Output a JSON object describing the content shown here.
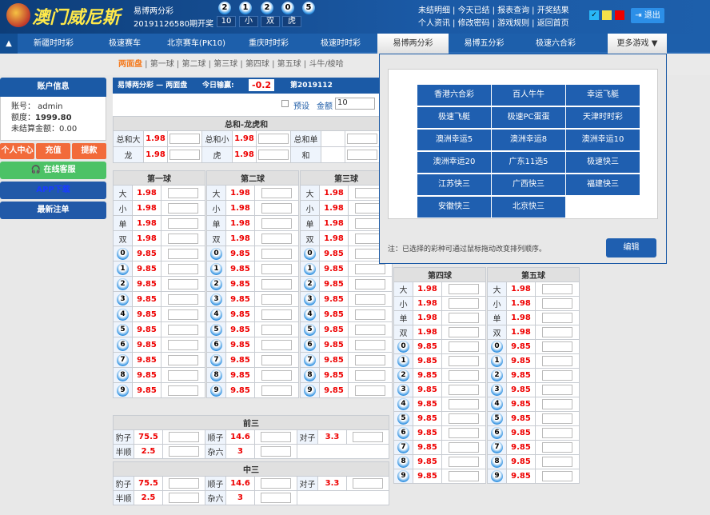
{
  "brand": "澳门威尼斯",
  "lottery": {
    "name": "易博两分彩",
    "issue": "20191126580期开奖",
    "balls": [
      "2",
      "1",
      "2",
      "0",
      "5"
    ],
    "results": [
      "10",
      "小",
      "双",
      "虎"
    ]
  },
  "top_links": {
    "row1": [
      "未结明细",
      "今天已结",
      "报表查询",
      "开奖结果"
    ],
    "row2": [
      "个人资讯",
      "修改密码",
      "游戏规则",
      "返回首页"
    ]
  },
  "theme_colors": [
    "#29b6f6",
    "#f5e04a",
    "#e00000"
  ],
  "logout": "退出",
  "nav": [
    "新疆时时彩",
    "极速赛车",
    "北京赛车(PK10)",
    "重庆时时彩",
    "极速时时彩",
    "易博两分彩",
    "易博五分彩",
    "极速六合彩",
    "更多游戏"
  ],
  "subnav": [
    "两面盘",
    "第一球",
    "第二球",
    "第三球",
    "第四球",
    "第五球",
    "斗牛/梭哈"
  ],
  "account": {
    "title": "账户信息",
    "user": "账号： admin",
    "credit_label": "额度：",
    "credit": "1999.80",
    "unsettled": "未结算金额：0.00"
  },
  "side_buttons": [
    "个人中心",
    "充值",
    "提款",
    "在线客服",
    "APP下载",
    "最新注单"
  ],
  "panel": {
    "title": "易博两分彩 — 两面盘",
    "today_label": "今日输赢:",
    "today_value": "-0.2",
    "issue": "第2019112",
    "preset": "预设",
    "amount_label": "金额",
    "amount": "10"
  },
  "sum_table": {
    "title": "总和-龙虎和",
    "rows": [
      [
        [
          "总和大",
          "1.98"
        ],
        [
          "总和小",
          "1.98"
        ],
        [
          "总和单",
          ""
        ]
      ],
      [
        [
          "龙",
          "1.98"
        ],
        [
          "虎",
          "1.98"
        ],
        [
          "和",
          ""
        ]
      ]
    ]
  },
  "balls": {
    "titles": [
      "第一球",
      "第二球",
      "第三球",
      "第四球",
      "第五球"
    ],
    "bs": [
      [
        "大",
        "1.98"
      ],
      [
        "小",
        "1.98"
      ],
      [
        "单",
        "1.98"
      ],
      [
        "双",
        "1.98"
      ]
    ],
    "digits": [
      "0",
      "1",
      "2",
      "3",
      "4",
      "5",
      "6",
      "7",
      "8",
      "9"
    ],
    "digit_odds": "9.85"
  },
  "combos": [
    {
      "title": "前三",
      "items": [
        [
          "豹子",
          "75.5"
        ],
        [
          "顺子",
          "14.6"
        ],
        [
          "对子",
          "3.3"
        ],
        [
          "半顺",
          "2.5"
        ],
        [
          "杂六",
          "3"
        ]
      ]
    },
    {
      "title": "中三",
      "items": [
        [
          "豹子",
          "75.5"
        ],
        [
          "顺子",
          "14.6"
        ],
        [
          "对子",
          "3.3"
        ],
        [
          "半顺",
          "2.5"
        ],
        [
          "杂六",
          "3"
        ]
      ]
    }
  ],
  "popup": {
    "games": [
      "香港六合彩",
      "百人牛牛",
      "幸运飞艇",
      "极速飞艇",
      "极速PC蛋蛋",
      "天津时时彩",
      "澳洲幸运5",
      "澳洲幸运8",
      "澳洲幸运10",
      "澳洲幸运20",
      "广东11选5",
      "极速快三",
      "江苏快三",
      "广西快三",
      "福建快三",
      "安徽快三",
      "北京快三"
    ],
    "note": "注：已选择的彩种可通过鼠标拖动改变排列顺序。",
    "edit": "编辑"
  }
}
